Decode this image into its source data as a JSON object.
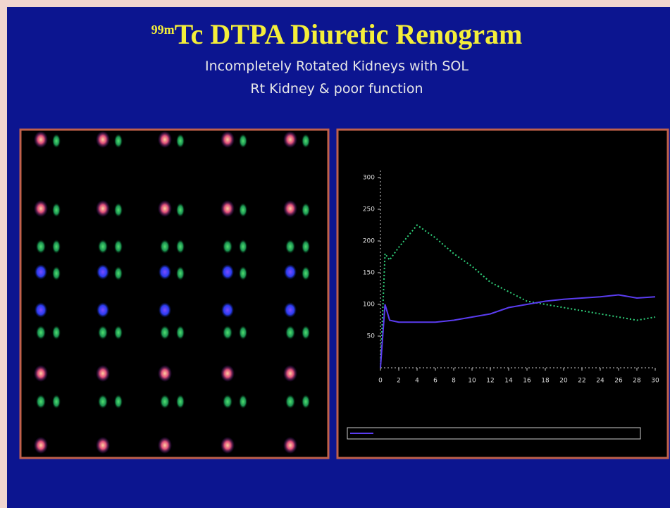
{
  "header": {
    "title_prefix": "99m",
    "title": "Tc DTPA Diuretic Renogram",
    "subtitle": [
      "Incompletely Rotated Kidneys with SOL",
      "Rt Kidney & poor function"
    ]
  },
  "chart_data": {
    "type": "line",
    "x": [
      0,
      0.5,
      1,
      2,
      4,
      6,
      8,
      10,
      12,
      14,
      16,
      18,
      20,
      22,
      24,
      26,
      28,
      30
    ],
    "series": [
      {
        "color": "#2fd07a",
        "values": [
          0,
          180,
          170,
          190,
          225,
          205,
          180,
          160,
          135,
          120,
          105,
          100,
          95,
          90,
          85,
          80,
          75,
          80
        ]
      },
      {
        "color": "#5a3cf0",
        "values": [
          0,
          100,
          75,
          72,
          72,
          72,
          75,
          80,
          85,
          95,
          100,
          105,
          108,
          110,
          112,
          115,
          110,
          112
        ]
      }
    ],
    "xlim": [
      0,
      30
    ],
    "xticks": [
      0,
      2,
      4,
      6,
      8,
      10,
      12,
      14,
      16,
      18,
      20,
      22,
      24,
      26,
      28,
      30
    ],
    "ylim": [
      0,
      300
    ],
    "yticks": [
      50,
      100,
      150,
      200,
      250,
      300
    ]
  }
}
